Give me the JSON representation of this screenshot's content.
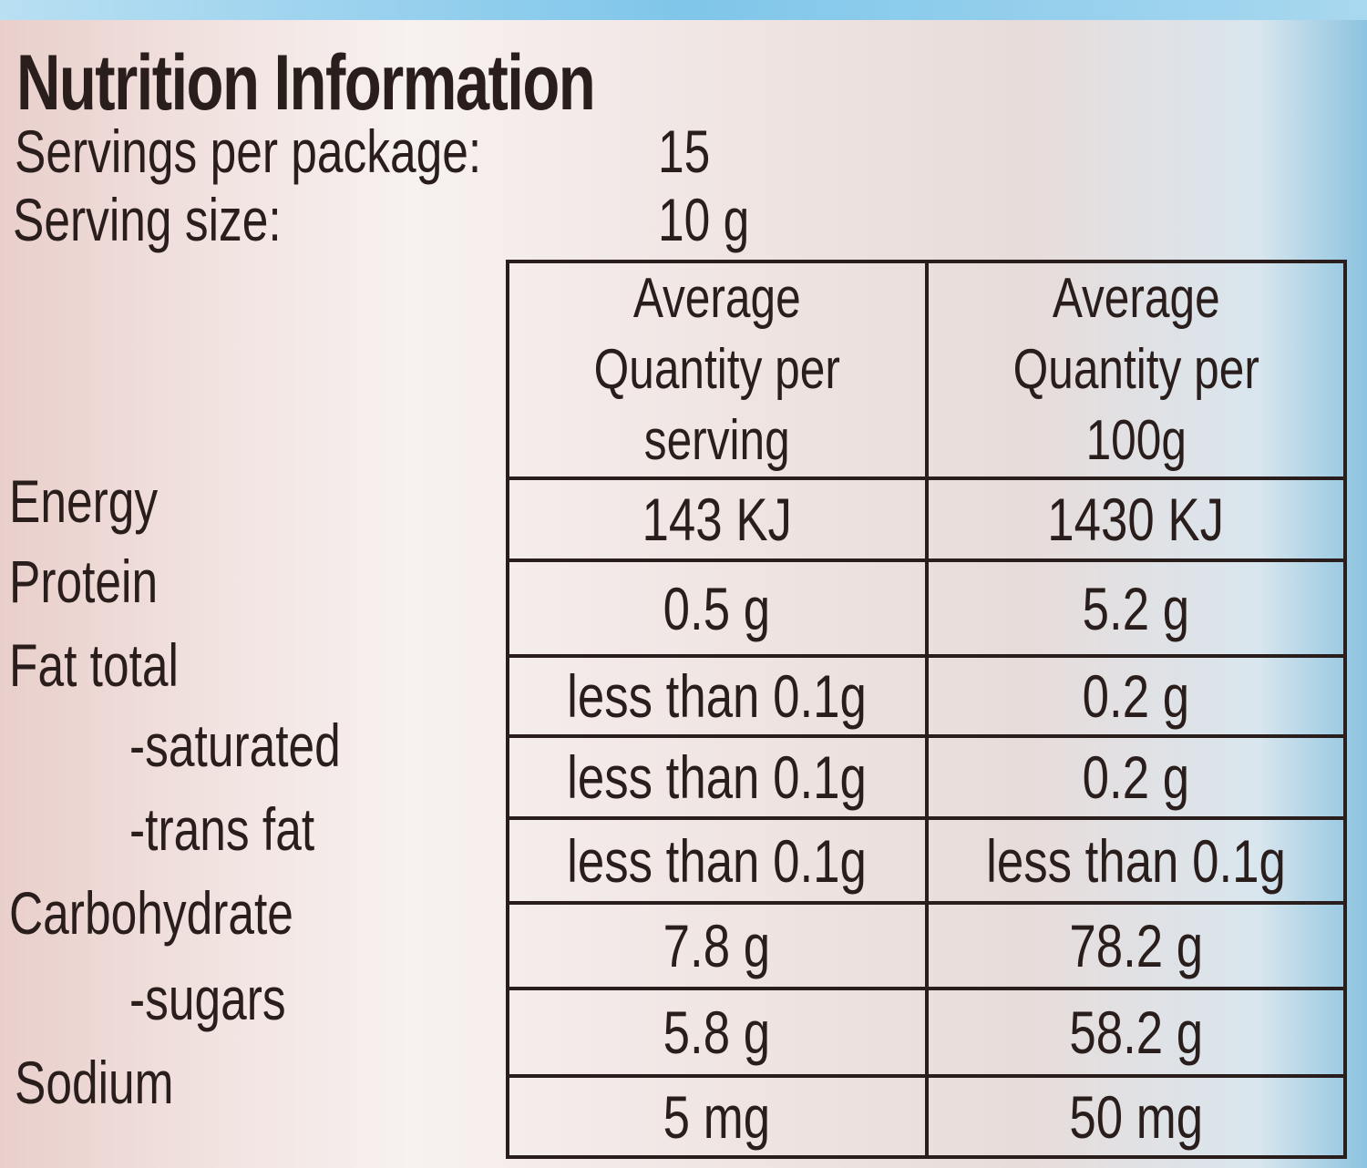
{
  "title": "Nutrition Information",
  "servings_per_package": {
    "label": "Servings per package:",
    "value": "15"
  },
  "serving_size": {
    "label": "Serving size:",
    "value": "10 g"
  },
  "table": {
    "headers": [
      "Average Quantity per serving",
      "Average Quantity per 100g"
    ],
    "rows": [
      {
        "label": "Energy",
        "per_serving": "143 KJ",
        "per_100g": "1430 KJ"
      },
      {
        "label": "Protein",
        "per_serving": "0.5 g",
        "per_100g": "5.2 g"
      },
      {
        "label": "Fat  total",
        "per_serving": "less than 0.1g",
        "per_100g": "0.2 g"
      },
      {
        "label": "-saturated",
        "per_serving": "less than 0.1g",
        "per_100g": "0.2 g"
      },
      {
        "label": "-trans fat",
        "per_serving": "less than 0.1g",
        "per_100g": "less than 0.1g"
      },
      {
        "label": "Carbohydrate",
        "per_serving": "7.8 g",
        "per_100g": "78.2 g"
      },
      {
        "label": "-sugars",
        "per_serving": "5.8 g",
        "per_100g": "58.2 g"
      },
      {
        "label": "Sodium",
        "per_serving": "5 mg",
        "per_100g": "50 mg"
      }
    ]
  }
}
